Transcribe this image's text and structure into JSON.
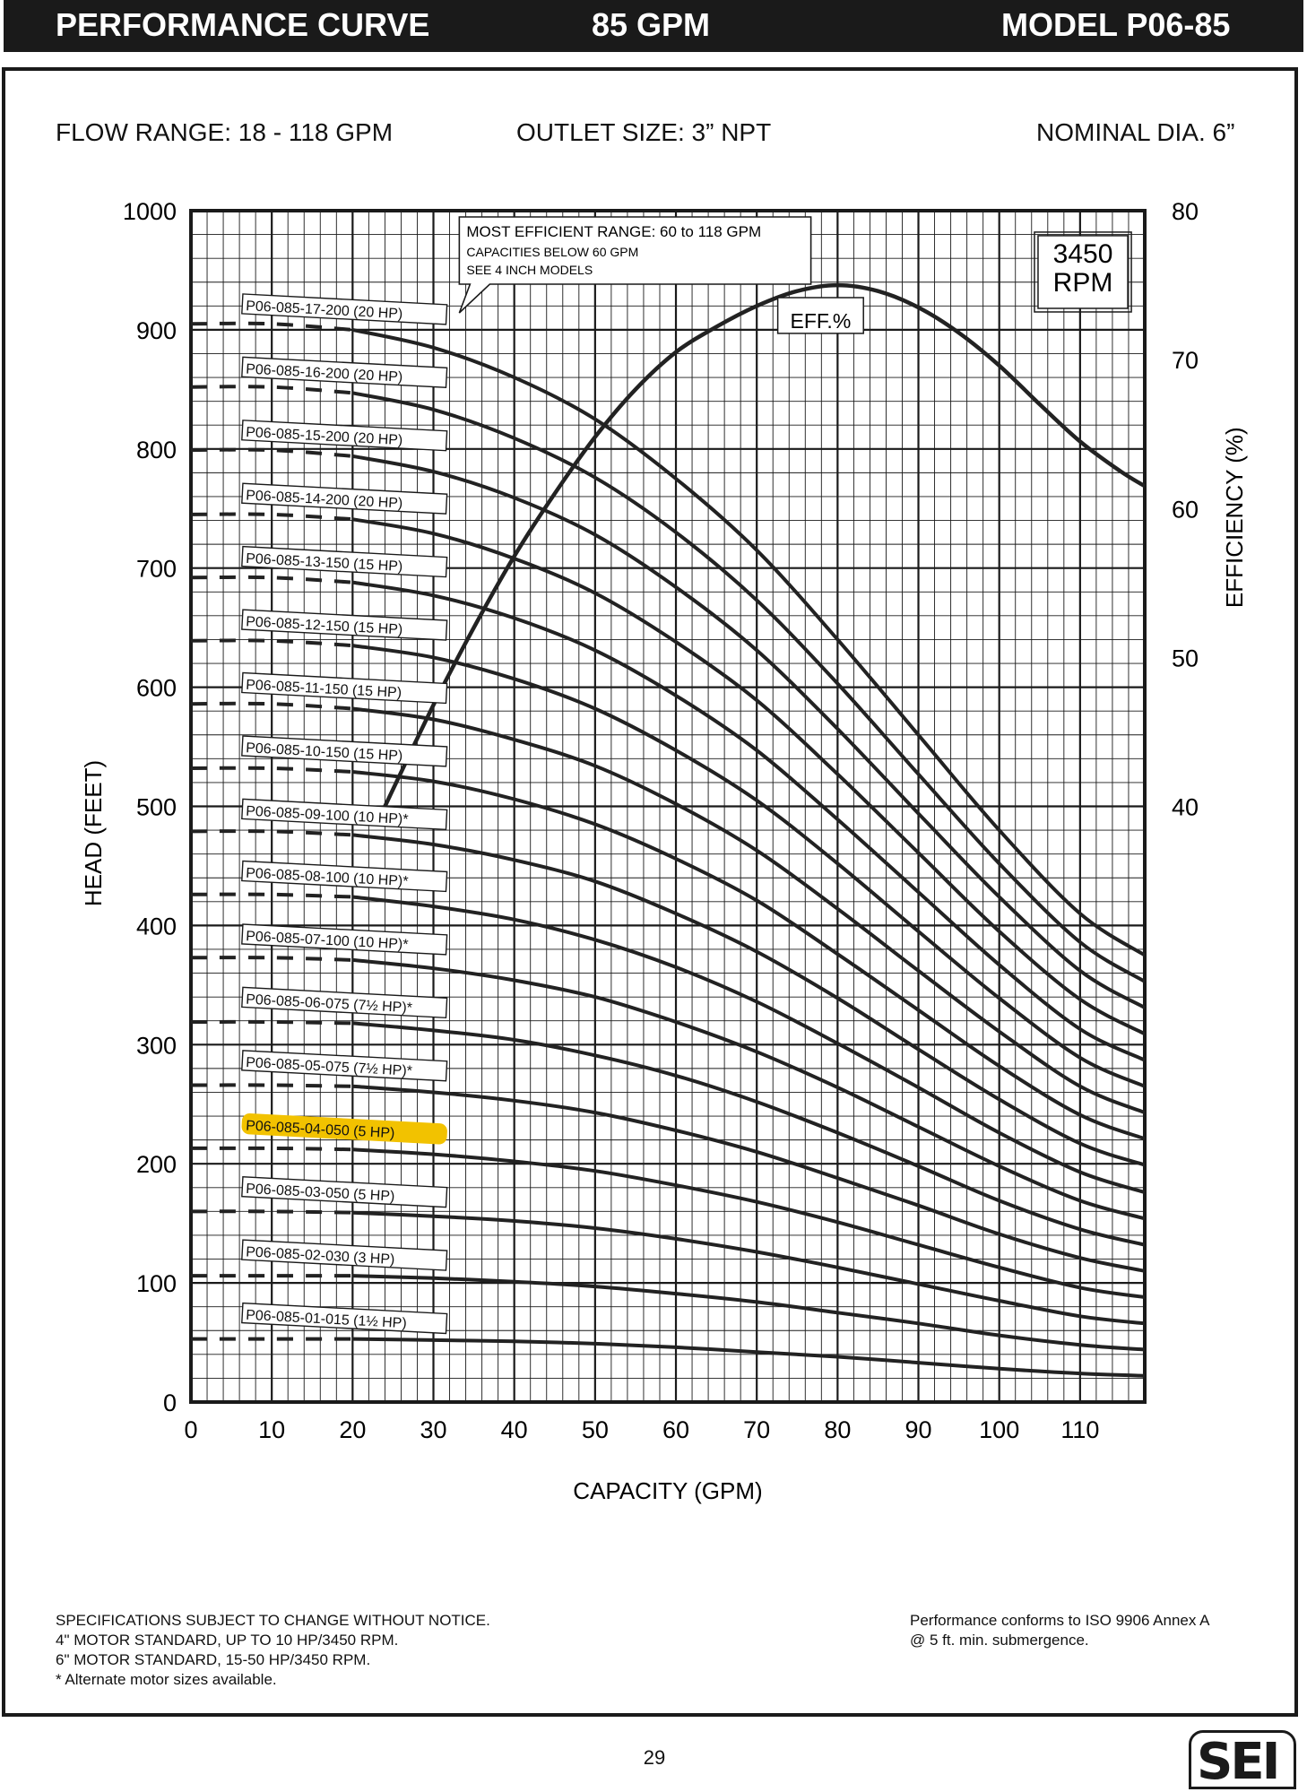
{
  "header": {
    "title": "PERFORMANCE CURVE",
    "flow": "85 GPM",
    "model": "MODEL  P06-85"
  },
  "info": {
    "flow_range": "FLOW RANGE: 18 - 118 GPM",
    "outlet_size": "OUTLET SIZE: 3” NPT",
    "nominal_dia": "NOMINAL DIA. 6”"
  },
  "chart_data": {
    "type": "line",
    "xlabel": "CAPACITY (GPM)",
    "ylabel": "HEAD (FEET)",
    "y2label": "EFFICIENCY (%)",
    "xlim": [
      0,
      118
    ],
    "ylim": [
      0,
      1000
    ],
    "y2lim": [
      0,
      80
    ],
    "x_ticks": [
      0,
      10,
      20,
      30,
      40,
      50,
      60,
      70,
      80,
      90,
      100,
      110
    ],
    "y_ticks": [
      0,
      100,
      200,
      300,
      400,
      500,
      600,
      700,
      800,
      900,
      1000
    ],
    "y2_ticks": [
      40,
      50,
      60,
      70,
      80
    ],
    "grid": true,
    "speed_label": [
      "3450",
      "RPM"
    ],
    "efficiency_label": "EFF.%",
    "annotation": [
      "MOST EFFICIENT RANGE: 60 to 118  GPM",
      "CAPACITIES BELOW 60 GPM",
      "SEE 4 INCH MODELS"
    ],
    "head_curve_x": [
      0,
      10,
      20,
      30,
      40,
      50,
      60,
      70,
      80,
      90,
      100,
      110,
      118
    ],
    "series": [
      {
        "name": "P06-085-17-200 (20 HP)",
        "head": [
          905,
          905,
          900,
          885,
          860,
          825,
          775,
          715,
          640,
          560,
          480,
          410,
          375
        ],
        "highlight": false
      },
      {
        "name": "P06-085-16-200 (20 HP)",
        "head": [
          852,
          852,
          847,
          833,
          809,
          776,
          730,
          673,
          603,
          527,
          452,
          386,
          353
        ],
        "highlight": false
      },
      {
        "name": "P06-085-15-200 (20 HP)",
        "head": [
          799,
          799,
          794,
          781,
          759,
          728,
          684,
          631,
          565,
          494,
          424,
          362,
          331
        ],
        "highlight": false
      },
      {
        "name": "P06-085-14-200 (20 HP)",
        "head": [
          745,
          745,
          741,
          729,
          708,
          679,
          638,
          589,
          527,
          461,
          395,
          338,
          309
        ],
        "highlight": false
      },
      {
        "name": "P06-085-13-150 (15 HP)",
        "head": [
          692,
          692,
          688,
          677,
          658,
          631,
          593,
          547,
          489,
          428,
          367,
          313,
          287
        ],
        "highlight": false
      },
      {
        "name": "P06-085-12-150 (15 HP)",
        "head": [
          639,
          639,
          635,
          625,
          607,
          582,
          547,
          505,
          452,
          395,
          339,
          289,
          265
        ],
        "highlight": false
      },
      {
        "name": "P06-085-11-150 (15 HP)",
        "head": [
          586,
          586,
          582,
          573,
          556,
          534,
          502,
          463,
          414,
          362,
          311,
          265,
          243
        ],
        "highlight": false
      },
      {
        "name": "P06-085-10-150 (15 HP)",
        "head": [
          532,
          532,
          529,
          521,
          506,
          485,
          456,
          421,
          376,
          329,
          282,
          241,
          221
        ],
        "highlight": false
      },
      {
        "name": "P06-085-09-100 (10 HP)*",
        "head": [
          479,
          479,
          476,
          468,
          455,
          437,
          410,
          378,
          339,
          296,
          254,
          217,
          199
        ],
        "highlight": false
      },
      {
        "name": "P06-085-08-100 (10 HP)*",
        "head": [
          426,
          426,
          424,
          416,
          405,
          388,
          365,
          336,
          301,
          264,
          226,
          193,
          176
        ],
        "highlight": false
      },
      {
        "name": "P06-085-07-100 (10 HP)*",
        "head": [
          373,
          373,
          371,
          364,
          354,
          340,
          319,
          294,
          264,
          231,
          198,
          169,
          154
        ],
        "highlight": false
      },
      {
        "name": "P06-085-06-075 (7½ HP)*",
        "head": [
          319,
          319,
          318,
          312,
          304,
          291,
          274,
          252,
          226,
          198,
          169,
          145,
          132
        ],
        "highlight": false
      },
      {
        "name": "P06-085-05-075 (7½ HP)*",
        "head": [
          266,
          266,
          265,
          260,
          253,
          243,
          228,
          210,
          188,
          165,
          141,
          121,
          110
        ],
        "highlight": false
      },
      {
        "name": "P06-085-04-050 (5 HP)",
        "head": [
          213,
          213,
          212,
          208,
          202,
          194,
          182,
          168,
          151,
          132,
          113,
          96,
          88
        ],
        "highlight": true
      },
      {
        "name": "P06-085-03-050 (5 HP)",
        "head": [
          160,
          160,
          159,
          156,
          152,
          146,
          137,
          126,
          113,
          99,
          85,
          72,
          66
        ],
        "highlight": false
      },
      {
        "name": "P06-085-02-030 (3 HP)",
        "head": [
          106,
          106,
          106,
          104,
          101,
          97,
          91,
          84,
          75,
          66,
          56,
          48,
          44
        ],
        "highlight": false
      },
      {
        "name": "P06-085-01-015 (1½ HP)",
        "head": [
          53,
          53,
          53,
          52,
          51,
          49,
          46,
          42,
          38,
          33,
          28,
          24,
          22
        ],
        "highlight": false
      }
    ],
    "efficiency_curve": {
      "name": "EFF.%",
      "x": [
        24,
        30,
        35,
        40,
        45,
        50,
        55,
        60,
        65,
        70,
        75,
        80,
        85,
        90,
        95,
        100,
        105,
        110,
        115,
        118
      ],
      "efficiency": [
        40,
        46.8,
        52,
        56.8,
        61,
        64.8,
        68,
        70.5,
        72.2,
        73.6,
        74.6,
        75,
        74.6,
        73.5,
        71.8,
        69.6,
        67,
        64.5,
        62.5,
        61.5
      ]
    }
  },
  "colors": {
    "curve": "#222222",
    "grid": "#1a1a1a",
    "highlight": "#f2c200",
    "header_bg": "#1a1a1a"
  },
  "footer": {
    "notes": [
      "SPECIFICATIONS SUBJECT TO CHANGE WITHOUT NOTICE.",
      "4\" MOTOR STANDARD, UP TO 10 HP/3450 RPM.",
      "6\" MOTOR STANDARD, 15-50 HP/3450 RPM.",
      "* Alternate motor sizes available."
    ],
    "performance": [
      "Performance conforms to ISO 9906 Annex A",
      "@ 5 ft. min. submergence."
    ],
    "page_number": "29",
    "logo": "SEI"
  }
}
